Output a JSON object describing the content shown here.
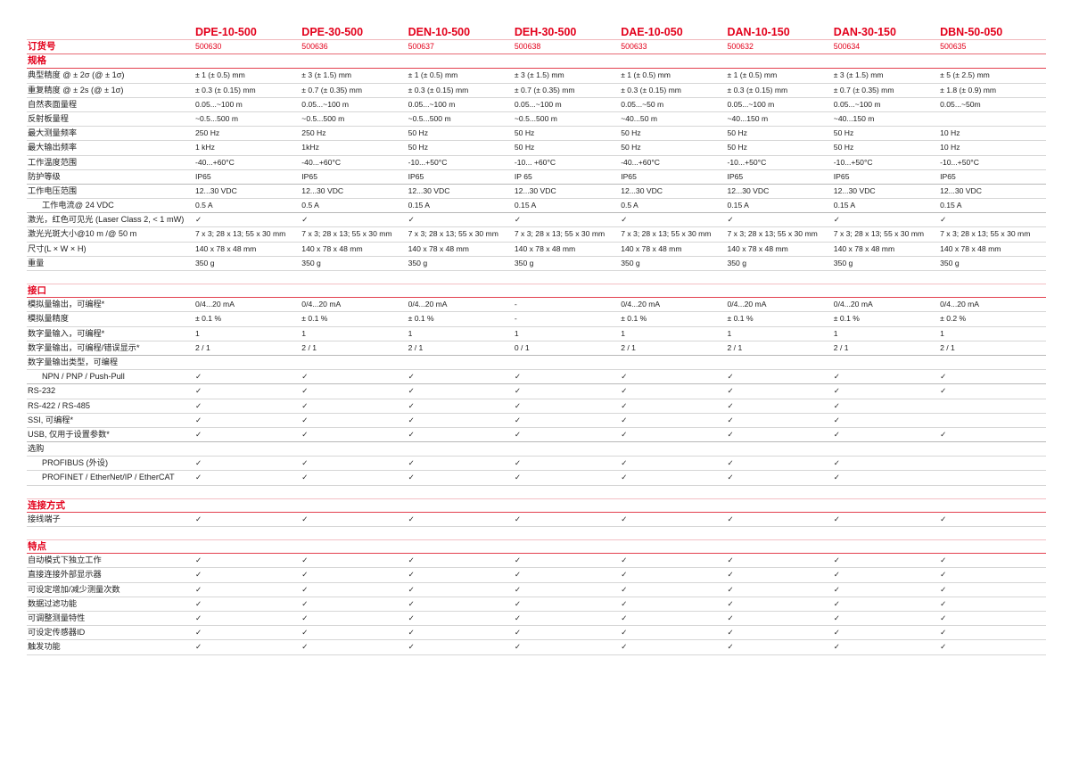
{
  "models": [
    "DPE-10-500",
    "DPE-30-500",
    "DEN-10-500",
    "DEH-30-500",
    "DAE-10-050",
    "DAN-10-150",
    "DAN-30-150",
    "DBN-50-050"
  ],
  "order_row": {
    "label": "订货号",
    "values": [
      "500630",
      "500636",
      "500637",
      "500638",
      "500633",
      "500632",
      "500634",
      "500635"
    ]
  },
  "colors": {
    "accent": "#e3001b",
    "rule": "#d6d6d6"
  },
  "sections": [
    {
      "title": "规格",
      "rows": [
        {
          "label": "典型精度 @ ± 2σ (@ ± 1σ)",
          "values": [
            "± 1 (± 0.5) mm",
            "± 3 (± 1.5) mm",
            "± 1 (± 0.5) mm",
            "± 3 (± 1.5) mm",
            "± 1 (± 0.5) mm",
            "± 1 (± 0.5) mm",
            "± 3 (± 1.5) mm",
            "± 5 (± 2.5) mm"
          ]
        },
        {
          "label": "重复精度 @ ± 2s (@ ± 1σ)",
          "values": [
            "± 0.3 (± 0.15) mm",
            "± 0.7 (± 0.35) mm",
            "± 0.3 (± 0.15) mm",
            "± 0.7 (± 0.35) mm",
            "± 0.3 (± 0.15) mm",
            "± 0.3 (± 0.15) mm",
            "± 0.7 (± 0.35) mm",
            "± 1.8 (± 0.9) mm"
          ]
        },
        {
          "label": "自然表面量程",
          "values": [
            "0.05...~100 m",
            "0.05...~100 m",
            "0.05...~100 m",
            "0.05...~100 m",
            "0.05...~50 m",
            "0.05...~100 m",
            "0.05...~100 m",
            "0.05...~50m"
          ]
        },
        {
          "label": "反射板量程",
          "values": [
            " ~0.5...500 m",
            " ~0.5...500 m",
            " ~0.5...500 m",
            " ~0.5...500 m",
            "~40...50 m",
            "~40...150 m",
            "~40...150 m",
            ""
          ]
        },
        {
          "label": "最大测量频率",
          "values": [
            "250 Hz",
            "250 Hz",
            "50 Hz",
            "50 Hz",
            "50 Hz",
            "50 Hz",
            "50 Hz",
            "10 Hz"
          ]
        },
        {
          "label": "最大输出频率",
          "values": [
            "1 kHz",
            "1kHz",
            "50 Hz",
            "50 Hz",
            "50 Hz",
            "50 Hz",
            "50 Hz",
            "10 Hz"
          ]
        },
        {
          "label": "工作温度范围",
          "values": [
            "-40...+60°C",
            "-40...+60°C",
            "-10...+50°C",
            "-10... +60°C",
            "-40...+60°C",
            "-10...+50°C",
            "-10...+50°C",
            "-10...+50°C"
          ]
        },
        {
          "label": "防护等级",
          "values": [
            "IP65",
            "IP65",
            "IP65",
            "IP 65",
            "IP65",
            "IP65",
            "IP65",
            "IP65"
          ],
          "thick": true
        },
        {
          "label": "工作电压范围",
          "values": [
            "12...30 VDC",
            "12...30 VDC",
            "12...30 VDC",
            "12...30 VDC",
            "12...30 VDC",
            "12...30 VDC",
            "12...30 VDC",
            "12...30 VDC"
          ]
        },
        {
          "label": "工作电流@ 24 VDC",
          "indent": true,
          "values": [
            "0.5 A",
            "0.5 A",
            "0.15 A",
            "0.15 A",
            "0.5 A",
            "0.15 A",
            "0.15 A",
            "0.15 A"
          ],
          "thick": true
        },
        {
          "label": "激光，红色可见光 (Laser Class 2, < 1 mW)",
          "values": [
            "✓",
            "✓",
            "✓",
            "✓",
            "✓",
            "✓",
            "✓",
            "✓"
          ]
        },
        {
          "label": "激光光斑大小@10 m /@ 50 m",
          "values": [
            "7 x 3; 28 x 13; 55 x 30 mm",
            "7 x 3; 28 x 13; 55 x 30 mm",
            "7 x 3; 28 x 13; 55 x 30 mm",
            "7 x 3; 28 x 13; 55 x 30 mm",
            "7 x 3; 28 x 13; 55 x 30 mm",
            "7 x 3; 28 x 13; 55 x 30 mm",
            "7 x 3; 28 x 13; 55 x 30 mm",
            "7 x 3; 28 x 13; 55 x 30 mm"
          ]
        },
        {
          "label": "尺寸(L × W × H)",
          "values": [
            "140 x 78 x 48 mm",
            "140 x 78 x 48 mm",
            "140 x 78 x 48 mm",
            "140 x 78 x 48 mm",
            "140 x 78 x 48 mm",
            "140 x 78 x 48 mm",
            "140 x 78 x 48 mm",
            "140 x 78 x 48 mm"
          ]
        },
        {
          "label": "重量",
          "values": [
            "350 g",
            "350 g",
            "350 g",
            "350 g",
            "350 g",
            "350 g",
            "350 g",
            "350 g"
          ]
        }
      ]
    },
    {
      "title": "接口",
      "rows": [
        {
          "label": "模拟量输出，可编程*",
          "values": [
            "0/4...20 mA",
            "0/4...20 mA",
            "0/4...20 mA",
            "-",
            "0/4...20 mA",
            "0/4...20 mA",
            "0/4...20 mA",
            "0/4...20 mA"
          ]
        },
        {
          "label": "模拟量精度",
          "values": [
            "± 0.1 %",
            "± 0.1 %",
            "± 0.1 %",
            "-",
            "± 0.1 %",
            "± 0.1 %",
            "± 0.1 %",
            "± 0.2 %"
          ]
        },
        {
          "label": "数字量输入，可编程*",
          "values": [
            "1",
            "1",
            "1",
            "1",
            "1",
            "1",
            "1",
            "1"
          ]
        },
        {
          "label": "数字量输出，可编程/错误显示*",
          "values": [
            "2 / 1",
            "2 / 1",
            "2 / 1",
            "0 / 1",
            "2 / 1",
            "2 / 1",
            "2 / 1",
            "2 / 1"
          ],
          "thick": true
        },
        {
          "label": "数字量输出类型，可编程",
          "values": [
            "",
            "",
            "",
            "",
            "",
            "",
            "",
            ""
          ]
        },
        {
          "label": "NPN / PNP / Push-Pull",
          "indent": true,
          "values": [
            "✓",
            "✓",
            "✓",
            "✓",
            "✓",
            "✓",
            "✓",
            "✓"
          ],
          "thick": true
        },
        {
          "label": "RS-232",
          "values": [
            "✓",
            "✓",
            "✓",
            "✓",
            "✓",
            "✓",
            "✓",
            "✓"
          ]
        },
        {
          "label": "RS-422 / RS-485",
          "values": [
            "✓",
            "✓",
            "✓",
            "✓",
            "✓",
            "✓",
            "✓",
            ""
          ]
        },
        {
          "label": "SSI, 可编程*",
          "values": [
            "✓",
            "✓",
            "✓",
            "✓",
            "✓",
            "✓",
            "✓",
            ""
          ]
        },
        {
          "label": "USB, 仅用于设置参数*",
          "values": [
            "✓",
            "✓",
            "✓",
            "✓",
            "✓",
            "✓",
            "✓",
            "✓"
          ],
          "thick": true
        },
        {
          "label": "选购",
          "values": [
            "",
            "",
            "",
            "",
            "",
            "",
            "",
            ""
          ]
        },
        {
          "label": "PROFIBUS (外设)",
          "indent": true,
          "values": [
            "✓",
            "✓",
            "✓",
            "✓",
            "✓",
            "✓",
            "✓",
            ""
          ]
        },
        {
          "label": "PROFINET / EtherNet/IP / EtherCAT",
          "indent": true,
          "values": [
            "✓",
            "✓",
            "✓",
            "✓",
            "✓",
            "✓",
            "✓",
            ""
          ]
        }
      ]
    },
    {
      "title": "连接方式",
      "rows": [
        {
          "label": "接线端子",
          "values": [
            "✓",
            "✓",
            "✓",
            "✓",
            "✓",
            "✓",
            "✓",
            "✓"
          ]
        }
      ]
    },
    {
      "title": "特点",
      "rows": [
        {
          "label": "自动模式下独立工作",
          "values": [
            "✓",
            "✓",
            "✓",
            "✓",
            "✓",
            "✓",
            "✓",
            "✓"
          ]
        },
        {
          "label": "直接连接外部显示器",
          "values": [
            "✓",
            "✓",
            "✓",
            "✓",
            "✓",
            "✓",
            "✓",
            "✓"
          ]
        },
        {
          "label": "可设定增加/减少测量次数",
          "values": [
            "✓",
            "✓",
            "✓",
            "✓",
            "✓",
            "✓",
            "✓",
            "✓"
          ]
        },
        {
          "label": "数据过滤功能",
          "values": [
            "✓",
            "✓",
            "✓",
            "✓",
            "✓",
            "✓",
            "✓",
            "✓"
          ]
        },
        {
          "label": "可调整测量特性",
          "values": [
            "✓",
            "✓",
            "✓",
            "✓",
            "✓",
            "✓",
            "✓",
            "✓"
          ]
        },
        {
          "label": "可设定传感器ID",
          "values": [
            "✓",
            "✓",
            "✓",
            "✓",
            "✓",
            "✓",
            "✓",
            "✓"
          ]
        },
        {
          "label": "触发功能",
          "values": [
            "✓",
            "✓",
            "✓",
            "✓",
            "✓",
            "✓",
            "✓",
            "✓"
          ]
        }
      ]
    }
  ]
}
